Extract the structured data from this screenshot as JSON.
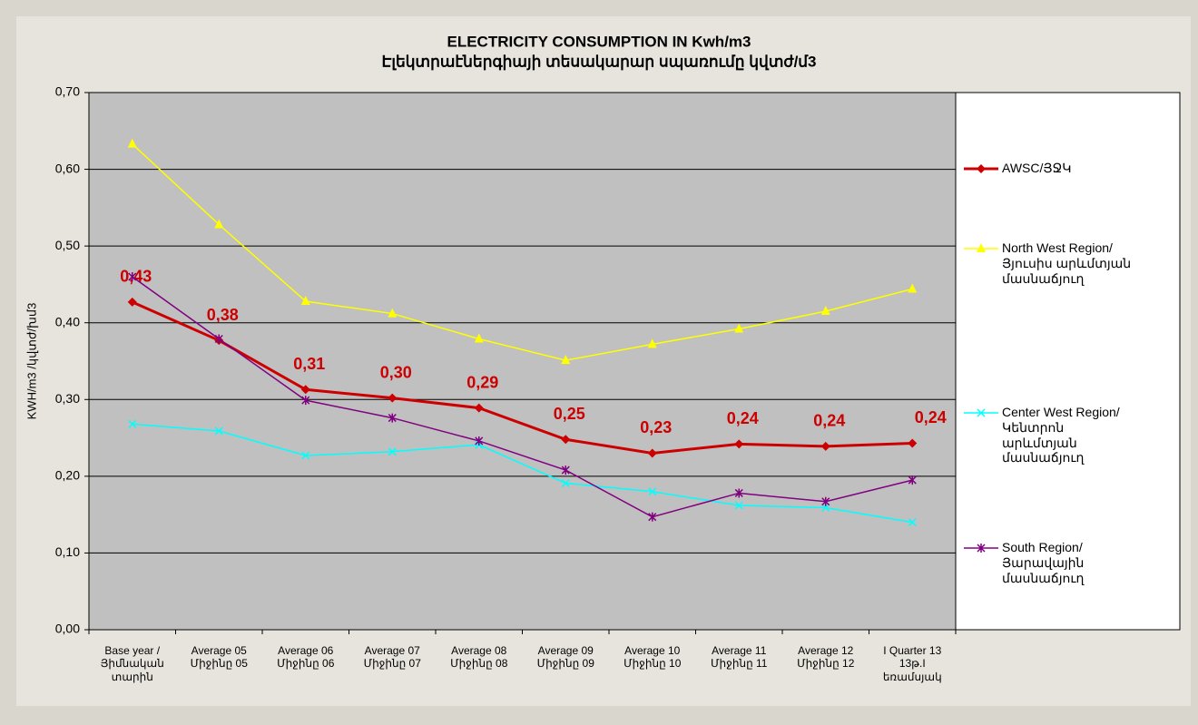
{
  "chart_data": {
    "type": "line",
    "title": "ELECTRICITY CONSUMPTION IN Kwh/m3",
    "subtitle": "Էլեկտրաէներգիայի տեսակարար սպառումը կվտժ/մ3",
    "y_label": "KWH/m3  /կվտժ/խմ3",
    "categories": [
      "Base year /\nՅիմնական\nտարին",
      "Average 05\nՄիջինը 05",
      "Average 06\nՄիջինը 06",
      "Average 07\nՄիջինը 07",
      "Average 08\nՄիջինը 08",
      "Average 09\nՄիջինը 09",
      "Average 10\nՄիջինը 10",
      "Average 11\nՄիջինը 11",
      "Average 12\nՄիջինը 12",
      "I Quarter 13\n13թ.I\nեռամսյակ"
    ],
    "series": [
      {
        "name": "AWSC/ՅՋԿ",
        "color": "#cc0000",
        "marker": "diamond",
        "values": [
          0.427,
          0.377,
          0.313,
          0.302,
          0.289,
          0.248,
          0.23,
          0.242,
          0.239,
          0.243
        ],
        "value_labels": [
          "0,43",
          "0,38",
          "0,31",
          "0,30",
          "0,29",
          "0,25",
          "0,23",
          "0,24",
          "0,24",
          "0,24"
        ]
      },
      {
        "name": "North West Region/\nՅյուսիս արևմտյան\nմասնաճյուղ",
        "color": "#ffff00",
        "marker": "triangle",
        "values": [
          0.633,
          0.528,
          0.428,
          0.412,
          0.379,
          0.351,
          0.372,
          0.392,
          0.415,
          0.444
        ]
      },
      {
        "name": "Center West Region/\nԿենտրոն արևմտյան\nմասնաճյուղ",
        "color": "#00ffff",
        "marker": "x",
        "values": [
          0.268,
          0.259,
          0.227,
          0.232,
          0.241,
          0.191,
          0.18,
          0.162,
          0.159,
          0.14
        ]
      },
      {
        "name": "South Region/\nՅարավային\nմասնաճյուղ",
        "color": "#800080",
        "marker": "star",
        "values": [
          0.46,
          0.379,
          0.299,
          0.276,
          0.246,
          0.208,
          0.147,
          0.178,
          0.167,
          0.195
        ]
      }
    ],
    "ylim": [
      0,
      0.7
    ],
    "yticks": [
      {
        "value": 0,
        "label": "0,00"
      },
      {
        "value": 0.1,
        "label": "0,10"
      },
      {
        "value": 0.2,
        "label": "0,20"
      },
      {
        "value": 0.3,
        "label": "0,30"
      },
      {
        "value": 0.4,
        "label": "0,40"
      },
      {
        "value": 0.5,
        "label": "0,50"
      },
      {
        "value": 0.6,
        "label": "0,60"
      },
      {
        "value": 0.7,
        "label": "0,70"
      }
    ],
    "grid": true,
    "legend": "right"
  }
}
